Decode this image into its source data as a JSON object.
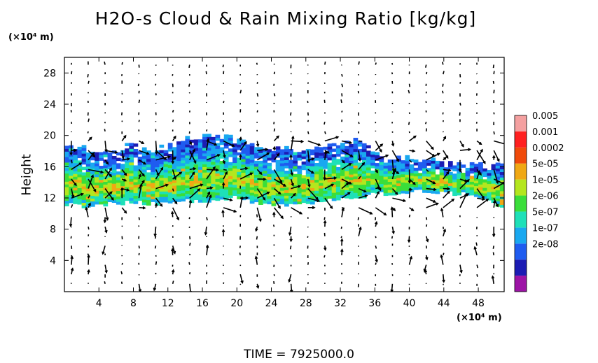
{
  "chart_data": {
    "type": "heatmap",
    "title": "H2O-s Cloud & Rain Mixing Ratio [kg/kg]",
    "ylabel": "Height",
    "y_unit": "(×10⁴ m)",
    "x_unit": "(×10⁴ m)",
    "xlim": [
      0,
      51
    ],
    "ylim": [
      0,
      30
    ],
    "xticks": [
      "4",
      "8",
      "12",
      "16",
      "20",
      "24",
      "28",
      "32",
      "36",
      "40",
      "44",
      "48"
    ],
    "yticks": [
      "4",
      "8",
      "12",
      "16",
      "20",
      "24",
      "28"
    ],
    "colorbar": {
      "labels": [
        "0.005",
        "0.001",
        "0.0002",
        "5e-05",
        "1e-05",
        "2e-06",
        "5e-07",
        "1e-07",
        "2e-08"
      ],
      "colors": [
        "#9d14a6",
        "#1c1cb4",
        "#1f5cf0",
        "#19a8f0",
        "#1ee0b8",
        "#3ade3a",
        "#b4e61e",
        "#f0a814",
        "#f04a0a",
        "#ff2020",
        "#f4a0a0"
      ]
    },
    "cloud_band": {
      "x": [
        0,
        2,
        4,
        6,
        8,
        10,
        12,
        14,
        16,
        18,
        20,
        22,
        24,
        26,
        28,
        30,
        32,
        34,
        36,
        38,
        40,
        42,
        44,
        46,
        48,
        50,
        51
      ],
      "top": [
        18.8,
        18.5,
        17.6,
        17.8,
        18.9,
        17.8,
        18.9,
        19.4,
        19.6,
        19.8,
        19.3,
        18.8,
        17.8,
        18.2,
        17.9,
        18.3,
        18.8,
        19.2,
        17.6,
        17.1,
        17.0,
        16.9,
        16.1,
        16.2,
        16.3,
        16.0,
        16.0
      ],
      "bottom": [
        11.2,
        11.0,
        11.2,
        11.3,
        11.5,
        11.3,
        11.4,
        11.6,
        11.6,
        11.8,
        12.2,
        11.5,
        11.2,
        11.0,
        11.2,
        11.6,
        12.0,
        12.1,
        12.6,
        12.4,
        12.8,
        12.9,
        12.6,
        12.6,
        12.3,
        11.2,
        11.0
      ]
    },
    "time_label": "TIME  =  7925000.0"
  }
}
